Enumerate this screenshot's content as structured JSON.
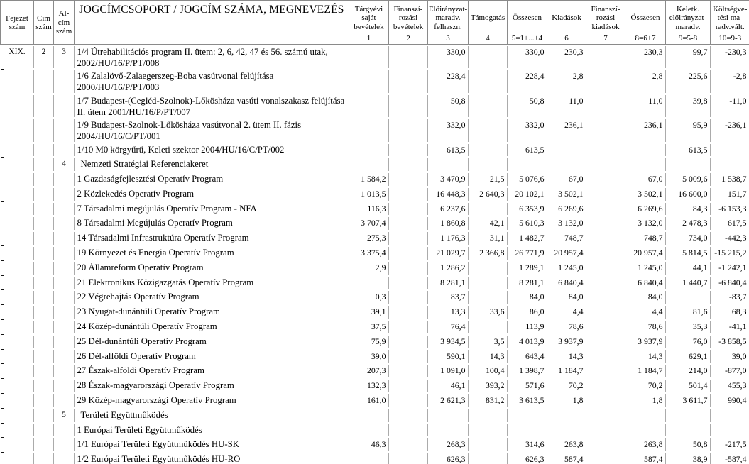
{
  "colors": {
    "grid_dark": "#8a8a8a",
    "grid_light": "#ababab",
    "tick": "#151515",
    "text": "#000000",
    "background": "#ffffff"
  },
  "columns": [
    {
      "label": "Fejezet\nszám"
    },
    {
      "label": "Cím\nszám"
    },
    {
      "label": "Al-\ncím\nszám"
    },
    {
      "label": "JOGCÍMCSOPORT / JOGCÍM SZÁMA, MEGNEVEZÉS"
    },
    {
      "label": "Tárgyévi\nsaját\nbevételek",
      "num": "1"
    },
    {
      "label": "Finanszí-\nrozási\nbevételek",
      "num": "2"
    },
    {
      "label": "Előirányzat-\nmaradv.\nfelhaszn.",
      "num": "3"
    },
    {
      "label": "Támogatás",
      "num": "4"
    },
    {
      "label": "Összesen",
      "num": "5=1+...+4"
    },
    {
      "label": "Kiadások",
      "num": "6"
    },
    {
      "label": "Finanszí-\nrozási\nkiadások",
      "num": "7"
    },
    {
      "label": "Összesen",
      "num": "8=6+7"
    },
    {
      "label": "Keletk.\nelőirányzat-\nmaradv.",
      "num": "9=5-8"
    },
    {
      "label": "Költségve-\ntési ma-\nradv.vált.",
      "num": "10=9-3"
    }
  ],
  "rows": [
    {
      "fejezet": "XIX.",
      "cim": "2",
      "alcim": "3",
      "name": "1/4 Útrehabilitációs program II. ütem: 2, 6, 42, 47 és 56. számú utak, 2002/HU/16/P/PT/008",
      "values": [
        "",
        "",
        "330,0",
        "",
        "330,0",
        "230,3",
        "",
        "230,3",
        "99,7",
        "-230,3"
      ]
    },
    {
      "name": "1/6 Zalalövő-Zalaegerszeg-Boba vasútvonal felújítása 2000/HU/16/P/PT/003",
      "values": [
        "",
        "",
        "228,4",
        "",
        "228,4",
        "2,8",
        "",
        "2,8",
        "225,6",
        "-2,8"
      ]
    },
    {
      "name": "1/7 Budapest-(Cegléd-Szolnok)-Lőkösháza vasúti vonalszakasz felújítása II. ütem 2001/HU/16/P/PT/007",
      "values": [
        "",
        "",
        "50,8",
        "",
        "50,8",
        "11,0",
        "",
        "11,0",
        "39,8",
        "-11,0"
      ]
    },
    {
      "name": "1/9 Budapest-Szolnok-Lőkösháza vasútvonal 2. ütem II. fázis 2004/HU/16/C/PT/001",
      "values": [
        "",
        "",
        "332,0",
        "",
        "332,0",
        "236,1",
        "",
        "236,1",
        "95,9",
        "-236,1"
      ]
    },
    {
      "name": "1/10 M0 körgyűrű, Keleti szektor 2004/HU/16/C/PT/002",
      "values": [
        "",
        "",
        "613,5",
        "",
        "613,5",
        "",
        "",
        "",
        "613,5",
        ""
      ]
    },
    {
      "alcim": "4",
      "section": true,
      "name": "Nemzeti Stratégiai Referenciakeret",
      "values": [
        "",
        "",
        "",
        "",
        "",
        "",
        "",
        "",
        "",
        ""
      ]
    },
    {
      "name": "1 Gazdaságfejlesztési Operatív Program",
      "values": [
        "1 584,2",
        "",
        "3 470,9",
        "21,5",
        "5 076,6",
        "67,0",
        "",
        "67,0",
        "5 009,6",
        "1 538,7"
      ]
    },
    {
      "name": "2 Közlekedés Operatív Program",
      "values": [
        "1 013,5",
        "",
        "16 448,3",
        "2 640,3",
        "20 102,1",
        "3 502,1",
        "",
        "3 502,1",
        "16 600,0",
        "151,7"
      ]
    },
    {
      "name": "7 Társadalmi megújulás Operatív Program - NFA",
      "values": [
        "116,3",
        "",
        "6 237,6",
        "",
        "6 353,9",
        "6 269,6",
        "",
        "6 269,6",
        "84,3",
        "-6 153,3"
      ]
    },
    {
      "name": "8 Társadalmi Megújulás Operatív Program",
      "values": [
        "3 707,4",
        "",
        "1 860,8",
        "42,1",
        "5 610,3",
        "3 132,0",
        "",
        "3 132,0",
        "2 478,3",
        "617,5"
      ]
    },
    {
      "name": "14 Társadalmi Infrastruktúra Operatív Program",
      "values": [
        "275,3",
        "",
        "1 176,3",
        "31,1",
        "1 482,7",
        "748,7",
        "",
        "748,7",
        "734,0",
        "-442,3"
      ]
    },
    {
      "name": "19 Környezet és Energia Operatív Program",
      "values": [
        "3 375,4",
        "",
        "21 029,7",
        "2 366,8",
        "26 771,9",
        "20 957,4",
        "",
        "20 957,4",
        "5 814,5",
        "-15 215,2"
      ]
    },
    {
      "name": "20 Államreform Operatív Program",
      "values": [
        "2,9",
        "",
        "1 286,2",
        "",
        "1 289,1",
        "1 245,0",
        "",
        "1 245,0",
        "44,1",
        "-1 242,1"
      ]
    },
    {
      "name": "21 Elektronikus Közigazgatás Operatív Program",
      "values": [
        "",
        "",
        "8 281,1",
        "",
        "8 281,1",
        "6 840,4",
        "",
        "6 840,4",
        "1 440,7",
        "-6 840,4"
      ]
    },
    {
      "name": "22 Végrehajtás Operatív Program",
      "values": [
        "0,3",
        "",
        "83,7",
        "",
        "84,0",
        "84,0",
        "",
        "84,0",
        "",
        "-83,7"
      ]
    },
    {
      "name": "23 Nyugat-dunántúli Operatív Program",
      "values": [
        "39,1",
        "",
        "13,3",
        "33,6",
        "86,0",
        "4,4",
        "",
        "4,4",
        "81,6",
        "68,3"
      ]
    },
    {
      "name": "24 Közép-dunántúli Operatív Program",
      "values": [
        "37,5",
        "",
        "76,4",
        "",
        "113,9",
        "78,6",
        "",
        "78,6",
        "35,3",
        "-41,1"
      ]
    },
    {
      "name": "25 Dél-dunántúli Operatív Program",
      "values": [
        "75,9",
        "",
        "3 934,5",
        "3,5",
        "4 013,9",
        "3 937,9",
        "",
        "3 937,9",
        "76,0",
        "-3 858,5"
      ]
    },
    {
      "name": "26 Dél-alföldi Operatív Program",
      "values": [
        "39,0",
        "",
        "590,1",
        "14,3",
        "643,4",
        "14,3",
        "",
        "14,3",
        "629,1",
        "39,0"
      ]
    },
    {
      "name": "27 Észak-alföldi Operatív Program",
      "values": [
        "207,3",
        "",
        "1 091,0",
        "100,4",
        "1 398,7",
        "1 184,7",
        "",
        "1 184,7",
        "214,0",
        "-877,0"
      ]
    },
    {
      "name": "28 Észak-magyarországi Operatív Program",
      "values": [
        "132,3",
        "",
        "46,1",
        "393,2",
        "571,6",
        "70,2",
        "",
        "70,2",
        "501,4",
        "455,3"
      ]
    },
    {
      "name": "29 Közép-magyarországi Operatív Program",
      "values": [
        "161,0",
        "",
        "2 621,3",
        "831,2",
        "3 613,5",
        "1,8",
        "",
        "1,8",
        "3 611,7",
        "990,4"
      ]
    },
    {
      "alcim": "5",
      "section": true,
      "name": "Területi Együttműködés",
      "values": [
        "",
        "",
        "",
        "",
        "",
        "",
        "",
        "",
        "",
        ""
      ]
    },
    {
      "name": "1 Európai Területi Együttműködés",
      "values": [
        "",
        "",
        "",
        "",
        "",
        "",
        "",
        "",
        "",
        ""
      ]
    },
    {
      "name": "1/1 Európai Területi Együttműködés HU-SK",
      "values": [
        "46,3",
        "",
        "268,3",
        "",
        "314,6",
        "263,8",
        "",
        "263,8",
        "50,8",
        "-217,5"
      ]
    },
    {
      "name": "1/2 Európai Területi Együttműködés HU-RO",
      "values": [
        "",
        "",
        "626,3",
        "",
        "626,3",
        "587,4",
        "",
        "587,4",
        "38,9",
        "-587,4"
      ]
    }
  ]
}
